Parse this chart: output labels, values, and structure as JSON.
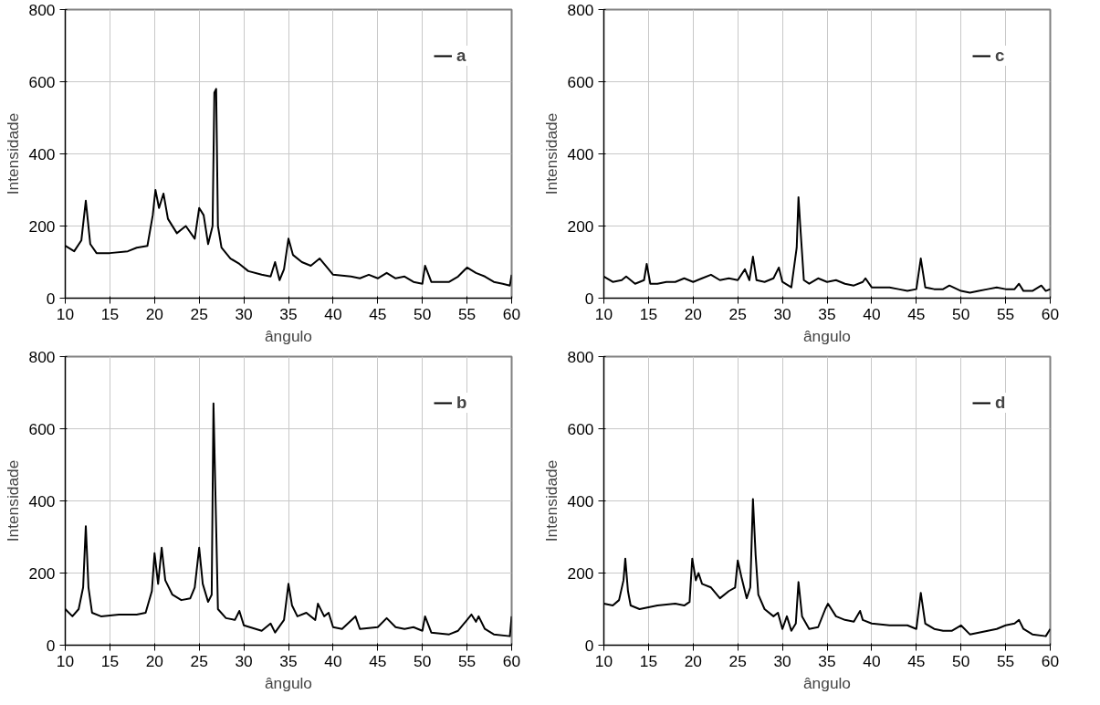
{
  "chart_data": [
    {
      "type": "line",
      "xlabel": "ângulo",
      "ylabel": "Intensidade",
      "xlim": [
        10,
        60
      ],
      "ylim": [
        0,
        800
      ],
      "xticks": [
        10,
        15,
        20,
        25,
        30,
        35,
        40,
        45,
        50,
        55,
        60
      ],
      "yticks": [
        0,
        200,
        400,
        600,
        800
      ],
      "grid": true,
      "legend": "top right",
      "x": [
        10,
        11,
        11.8,
        12.3,
        12.8,
        13.5,
        15,
        17,
        18,
        19.2,
        19.8,
        20.1,
        20.5,
        21,
        21.5,
        22.5,
        23.5,
        24.5,
        25,
        25.5,
        26,
        26.5,
        26.7,
        26.9,
        27.1,
        27.5,
        28.5,
        29.5,
        30.5,
        32,
        33,
        33.5,
        34,
        34.5,
        35,
        35.5,
        36.5,
        37.5,
        38.5,
        39.5,
        40,
        42,
        43,
        44,
        45,
        46,
        47,
        48,
        49,
        50,
        50.3,
        51,
        53,
        54,
        55,
        56,
        57,
        58,
        59,
        59.8,
        60
      ],
      "series": [
        {
          "name": "a",
          "color": "#000000",
          "values": [
            145,
            130,
            160,
            270,
            150,
            125,
            125,
            130,
            140,
            145,
            230,
            300,
            250,
            290,
            220,
            180,
            200,
            165,
            250,
            230,
            150,
            200,
            570,
            580,
            200,
            140,
            110,
            95,
            75,
            65,
            60,
            100,
            50,
            80,
            165,
            120,
            100,
            90,
            110,
            80,
            65,
            60,
            55,
            65,
            55,
            70,
            55,
            60,
            45,
            40,
            90,
            45,
            45,
            60,
            85,
            70,
            60,
            45,
            40,
            35,
            65
          ]
        }
      ]
    },
    {
      "type": "line",
      "xlabel": "ângulo",
      "ylabel": "Intensidade",
      "xlim": [
        10,
        60
      ],
      "ylim": [
        0,
        800
      ],
      "xticks": [
        10,
        15,
        20,
        25,
        30,
        35,
        40,
        45,
        50,
        55,
        60
      ],
      "yticks": [
        0,
        200,
        400,
        600,
        800
      ],
      "grid": true,
      "legend": "top right",
      "x": [
        10,
        11,
        12,
        12.5,
        13.5,
        14.5,
        14.8,
        15.2,
        16,
        17,
        18,
        19,
        20,
        21,
        22,
        23,
        24,
        25,
        25.8,
        26.3,
        26.7,
        27.1,
        28,
        29,
        29.6,
        30,
        31,
        31.6,
        31.8,
        32,
        32.4,
        33,
        34,
        35,
        36,
        37,
        38,
        39,
        39.3,
        40,
        41,
        42,
        43,
        44,
        45,
        45.5,
        46,
        47,
        48,
        48.7,
        50,
        51,
        52,
        53,
        54,
        55,
        56,
        56.5,
        57,
        58,
        59,
        59.5,
        60
      ],
      "series": [
        {
          "name": "c",
          "color": "#000000",
          "values": [
            60,
            45,
            50,
            60,
            40,
            50,
            95,
            40,
            40,
            45,
            45,
            55,
            45,
            55,
            65,
            50,
            55,
            50,
            80,
            50,
            115,
            50,
            45,
            55,
            85,
            45,
            30,
            140,
            280,
            200,
            50,
            40,
            55,
            45,
            50,
            40,
            35,
            45,
            55,
            30,
            30,
            30,
            25,
            20,
            25,
            110,
            30,
            25,
            25,
            35,
            20,
            15,
            20,
            25,
            30,
            25,
            25,
            40,
            20,
            20,
            35,
            20,
            25
          ]
        }
      ]
    },
    {
      "type": "line",
      "xlabel": "ângulo",
      "ylabel": "Intensidade",
      "xlim": [
        10,
        60
      ],
      "ylim": [
        0,
        800
      ],
      "xticks": [
        10,
        15,
        20,
        25,
        30,
        35,
        40,
        45,
        50,
        55,
        60
      ],
      "yticks": [
        0,
        200,
        400,
        600,
        800
      ],
      "grid": true,
      "legend": "top right",
      "x": [
        10,
        10.8,
        11.5,
        12,
        12.3,
        12.6,
        13,
        14,
        16,
        18,
        19,
        19.7,
        20,
        20.4,
        20.8,
        21.2,
        22,
        23,
        24,
        24.5,
        25,
        25.4,
        26,
        26.4,
        26.6,
        26.9,
        27.1,
        28,
        29,
        29.5,
        30,
        32,
        33,
        33.5,
        34.5,
        35,
        35.4,
        36,
        37,
        38,
        38.3,
        39,
        39.5,
        40,
        41,
        42.5,
        43,
        45,
        46,
        47,
        48,
        49,
        50,
        50.3,
        51,
        53,
        54,
        55,
        55.5,
        56,
        56.3,
        57,
        58,
        59.8,
        60
      ],
      "series": [
        {
          "name": "b",
          "color": "#000000",
          "values": [
            100,
            80,
            100,
            160,
            330,
            160,
            90,
            80,
            85,
            85,
            90,
            150,
            255,
            170,
            270,
            180,
            140,
            125,
            130,
            160,
            270,
            170,
            120,
            140,
            670,
            330,
            100,
            75,
            70,
            95,
            55,
            40,
            60,
            35,
            70,
            170,
            110,
            80,
            90,
            70,
            115,
            80,
            90,
            50,
            45,
            80,
            45,
            50,
            75,
            50,
            45,
            50,
            40,
            80,
            35,
            30,
            40,
            70,
            85,
            65,
            80,
            45,
            30,
            25,
            80
          ]
        }
      ]
    },
    {
      "type": "line",
      "xlabel": "ângulo",
      "ylabel": "Intensidade",
      "xlim": [
        10,
        60
      ],
      "ylim": [
        0,
        800
      ],
      "xticks": [
        10,
        15,
        20,
        25,
        30,
        35,
        40,
        45,
        50,
        55,
        60
      ],
      "yticks": [
        0,
        200,
        400,
        600,
        800
      ],
      "grid": true,
      "legend": "top right",
      "x": [
        10,
        11,
        11.7,
        12.2,
        12.4,
        12.7,
        13,
        14,
        16,
        18,
        19,
        19.6,
        19.9,
        20.3,
        20.6,
        21,
        22,
        23,
        24,
        24.7,
        25,
        25.4,
        26,
        26.4,
        26.7,
        27,
        27.3,
        28,
        29,
        29.5,
        30,
        30.5,
        31,
        31.5,
        31.8,
        32.2,
        33,
        34,
        34.8,
        35.1,
        36,
        37,
        38,
        38.7,
        39,
        40,
        42,
        44,
        45,
        45.5,
        46,
        47,
        48,
        49,
        50,
        51,
        52,
        54,
        55,
        56,
        56.5,
        57,
        58,
        59.5,
        60
      ],
      "series": [
        {
          "name": "d",
          "color": "#000000",
          "values": [
            115,
            110,
            125,
            180,
            240,
            150,
            110,
            100,
            110,
            115,
            110,
            120,
            240,
            180,
            200,
            170,
            160,
            130,
            150,
            160,
            235,
            190,
            130,
            160,
            405,
            250,
            140,
            100,
            80,
            90,
            45,
            80,
            40,
            60,
            175,
            80,
            45,
            50,
            100,
            115,
            80,
            70,
            65,
            95,
            70,
            60,
            55,
            55,
            45,
            145,
            60,
            45,
            40,
            40,
            55,
            30,
            35,
            45,
            55,
            60,
            70,
            45,
            30,
            25,
            45
          ]
        }
      ]
    }
  ]
}
